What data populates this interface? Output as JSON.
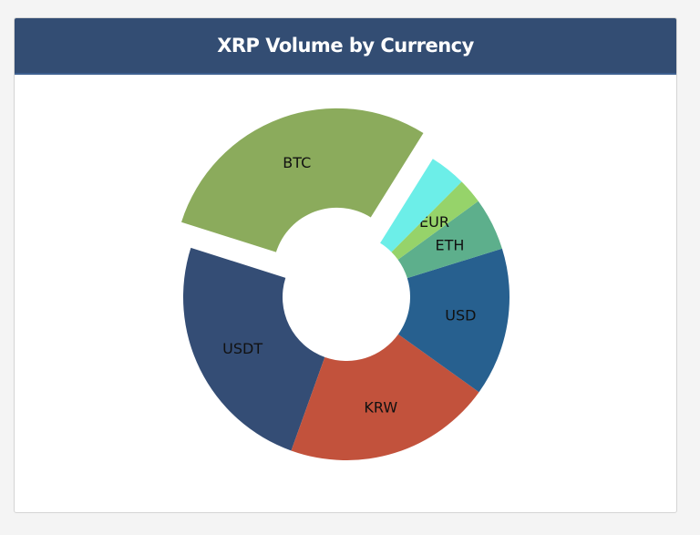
{
  "header": {
    "title": "XRP Volume by Currency"
  },
  "chart_data": {
    "type": "pie",
    "variant": "donut",
    "title": "XRP Volume by Currency",
    "start_angle_deg": 58,
    "slices": [
      {
        "label": "BTC",
        "value": 29.0,
        "color": "#8bab5c",
        "explode": true
      },
      {
        "label": "USDT",
        "value": 24.4,
        "color": "#344d75",
        "explode": false
      },
      {
        "label": "KRW",
        "value": 20.6,
        "color": "#c2523c",
        "explode": false
      },
      {
        "label": "USD",
        "value": 14.7,
        "color": "#27608f",
        "explode": false
      },
      {
        "label": "ETH",
        "value": 5.2,
        "color": "#5daf8c",
        "explode": false
      },
      {
        "label": "EUR",
        "value": 2.5,
        "color": "#96d36a",
        "explode": false
      },
      {
        "label": "",
        "value": 3.6,
        "color": "#6ceee8",
        "explode": false
      }
    ]
  }
}
